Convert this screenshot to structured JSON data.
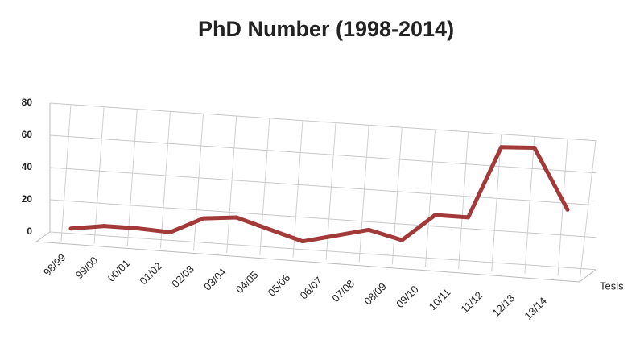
{
  "chart_data": {
    "type": "line",
    "title": "PhD Number (1998-2014)",
    "categories": [
      "98/99",
      "99/00",
      "00/01",
      "01/02",
      "02/03",
      "03/04",
      "04/05",
      "05/06",
      "06/07",
      "07/08",
      "08/09",
      "09/10",
      "10/11",
      "11/12",
      "12/13",
      "13/14"
    ],
    "series": [
      {
        "name": "Tesis",
        "color": "#a33a3a",
        "values": [
          3,
          6,
          6,
          5,
          15,
          17,
          11,
          5,
          10,
          15,
          10,
          27,
          27,
          72,
          73,
          36
        ]
      }
    ],
    "ylim": [
      0,
      80
    ],
    "yticks": [
      0,
      20,
      40,
      60,
      80
    ],
    "grid": true
  }
}
